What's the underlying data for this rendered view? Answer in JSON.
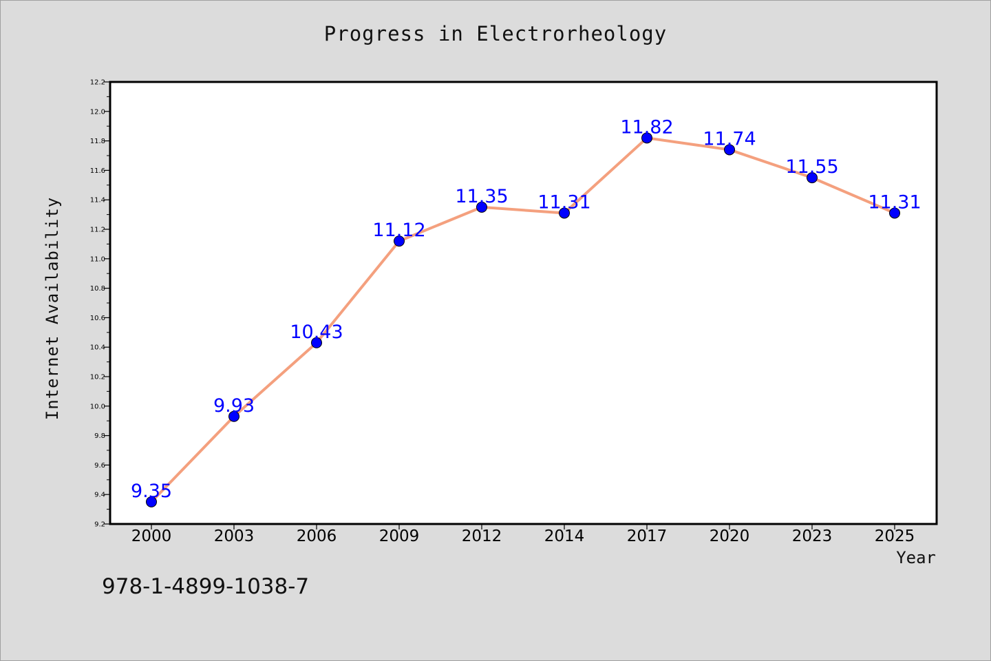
{
  "chart_data": {
    "type": "line",
    "title": "Progress in Electrorheology",
    "xlabel": "Year",
    "ylabel": "Internet Availability",
    "categories": [
      "2000",
      "2003",
      "2006",
      "2009",
      "2012",
      "2014",
      "2017",
      "2020",
      "2023",
      "2025"
    ],
    "series": [
      {
        "values": [
          9.35,
          9.93,
          10.43,
          11.12,
          11.35,
          11.31,
          11.82,
          11.74,
          11.55,
          11.31
        ],
        "line_color": "#f4a07e",
        "marker_color": "#0000ff",
        "label_color": "#0000ff"
      }
    ],
    "ylim": [
      9.2,
      12.2
    ],
    "yticks": [
      "9.2",
      "9.4",
      "9.6",
      "9.8",
      "10.0",
      "10.2",
      "10.4",
      "10.6",
      "10.8",
      "11.0",
      "11.2",
      "11.4",
      "11.6",
      "11.8",
      "12.0",
      "12.2"
    ],
    "data_labels": [
      "9.35",
      "9.93",
      "10.43",
      "11.12",
      "11.35",
      "11.31",
      "11.82",
      "11.74",
      "11.55",
      "11.31"
    ],
    "grid": false,
    "legend": false
  },
  "footer": {
    "isbn": "978-1-4899-1038-7"
  },
  "colors": {
    "background": "#dcdcdc",
    "plot_background": "#ffffff"
  }
}
